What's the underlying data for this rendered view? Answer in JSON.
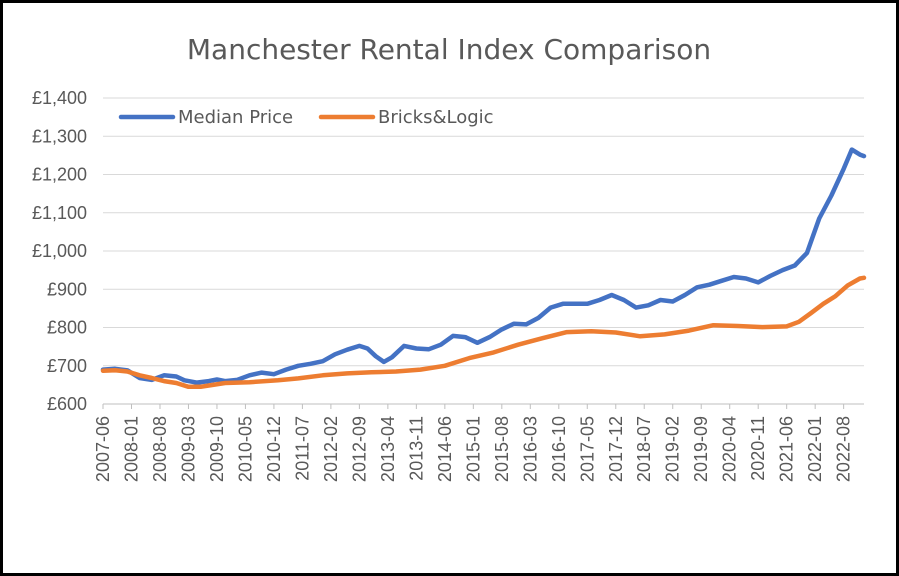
{
  "chart_data": {
    "type": "line",
    "title": "Manchester Rental Index Comparison",
    "xlabel": "",
    "ylabel": "",
    "ylim": [
      600,
      1400
    ],
    "y_ticks": [
      600,
      700,
      800,
      900,
      1000,
      1100,
      1200,
      1300,
      1400
    ],
    "y_tick_labels": [
      "£600",
      "£700",
      "£800",
      "£900",
      "£1,000",
      "£1,100",
      "£1,200",
      "£1,300",
      "£1,400"
    ],
    "x_tick_labels": [
      "2007-06",
      "2008-01",
      "2008-08",
      "2009-03",
      "2009-10",
      "2010-05",
      "2010-12",
      "2011-07",
      "2012-02",
      "2012-09",
      "2013-04",
      "2013-11",
      "2014-06",
      "2015-01",
      "2015-08",
      "2016-03",
      "2016-10",
      "2017-05",
      "2017-12",
      "2018-07",
      "2019-02",
      "2019-09",
      "2020-04",
      "2020-11",
      "2021-06",
      "2022-01",
      "2022-08"
    ],
    "x_range": [
      "2007-06",
      "2023-01"
    ],
    "grid": "horizontal",
    "legend_position": "top-left",
    "series": [
      {
        "name": "Median Price",
        "color": "#4472C4",
        "points": [
          [
            "2007-06",
            690
          ],
          [
            "2007-09",
            692
          ],
          [
            "2007-12",
            688
          ],
          [
            "2008-03",
            668
          ],
          [
            "2008-06",
            663
          ],
          [
            "2008-09",
            675
          ],
          [
            "2008-12",
            672
          ],
          [
            "2009-02",
            662
          ],
          [
            "2009-05",
            656
          ],
          [
            "2009-08",
            660
          ],
          [
            "2009-10",
            664
          ],
          [
            "2009-12",
            660
          ],
          [
            "2010-03",
            663
          ],
          [
            "2010-06",
            675
          ],
          [
            "2010-09",
            682
          ],
          [
            "2010-12",
            678
          ],
          [
            "2011-03",
            690
          ],
          [
            "2011-06",
            700
          ],
          [
            "2011-09",
            705
          ],
          [
            "2011-12",
            712
          ],
          [
            "2012-03",
            730
          ],
          [
            "2012-06",
            742
          ],
          [
            "2012-09",
            752
          ],
          [
            "2012-11",
            745
          ],
          [
            "2013-01",
            725
          ],
          [
            "2013-03",
            710
          ],
          [
            "2013-05",
            722
          ],
          [
            "2013-08",
            752
          ],
          [
            "2013-11",
            745
          ],
          [
            "2014-02",
            743
          ],
          [
            "2014-05",
            755
          ],
          [
            "2014-08",
            778
          ],
          [
            "2014-11",
            775
          ],
          [
            "2015-02",
            760
          ],
          [
            "2015-05",
            775
          ],
          [
            "2015-08",
            795
          ],
          [
            "2015-11",
            810
          ],
          [
            "2016-02",
            808
          ],
          [
            "2016-05",
            825
          ],
          [
            "2016-08",
            852
          ],
          [
            "2016-11",
            862
          ],
          [
            "2017-02",
            862
          ],
          [
            "2017-05",
            862
          ],
          [
            "2017-08",
            872
          ],
          [
            "2017-11",
            885
          ],
          [
            "2018-02",
            872
          ],
          [
            "2018-05",
            852
          ],
          [
            "2018-08",
            858
          ],
          [
            "2018-11",
            872
          ],
          [
            "2019-02",
            868
          ],
          [
            "2019-05",
            885
          ],
          [
            "2019-08",
            905
          ],
          [
            "2019-11",
            912
          ],
          [
            "2020-02",
            922
          ],
          [
            "2020-05",
            932
          ],
          [
            "2020-08",
            928
          ],
          [
            "2020-11",
            918
          ],
          [
            "2021-02",
            935
          ],
          [
            "2021-05",
            950
          ],
          [
            "2021-08",
            962
          ],
          [
            "2021-11",
            995
          ],
          [
            "2022-02",
            1085
          ],
          [
            "2022-05",
            1145
          ],
          [
            "2022-08",
            1215
          ],
          [
            "2022-10",
            1265
          ],
          [
            "2022-12",
            1252
          ],
          [
            "2023-01",
            1248
          ]
        ]
      },
      {
        "name": "Bricks&Logic",
        "color": "#ED7D31",
        "points": [
          [
            "2007-06",
            687
          ],
          [
            "2007-09",
            688
          ],
          [
            "2007-12",
            685
          ],
          [
            "2008-03",
            675
          ],
          [
            "2008-06",
            668
          ],
          [
            "2008-09",
            660
          ],
          [
            "2008-12",
            655
          ],
          [
            "2009-03",
            645
          ],
          [
            "2009-06",
            645
          ],
          [
            "2009-09",
            650
          ],
          [
            "2009-12",
            655
          ],
          [
            "2010-06",
            657
          ],
          [
            "2011-01",
            662
          ],
          [
            "2011-06",
            667
          ],
          [
            "2011-12",
            675
          ],
          [
            "2012-06",
            680
          ],
          [
            "2012-12",
            683
          ],
          [
            "2013-06",
            685
          ],
          [
            "2013-12",
            690
          ],
          [
            "2014-06",
            700
          ],
          [
            "2014-12",
            720
          ],
          [
            "2015-06",
            735
          ],
          [
            "2015-12",
            755
          ],
          [
            "2016-06",
            772
          ],
          [
            "2016-12",
            788
          ],
          [
            "2017-06",
            790
          ],
          [
            "2017-12",
            787
          ],
          [
            "2018-06",
            777
          ],
          [
            "2018-12",
            782
          ],
          [
            "2019-06",
            792
          ],
          [
            "2019-12",
            806
          ],
          [
            "2020-06",
            804
          ],
          [
            "2020-12",
            801
          ],
          [
            "2021-06",
            803
          ],
          [
            "2021-09",
            815
          ],
          [
            "2021-12",
            838
          ],
          [
            "2022-03",
            862
          ],
          [
            "2022-06",
            882
          ],
          [
            "2022-09",
            910
          ],
          [
            "2022-12",
            928
          ],
          [
            "2023-01",
            930
          ]
        ]
      }
    ]
  }
}
